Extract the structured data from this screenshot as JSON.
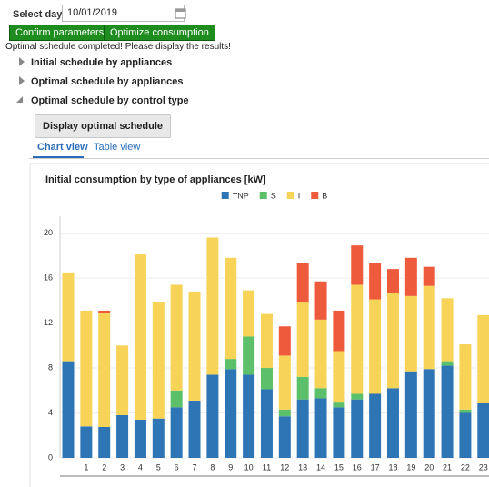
{
  "date_picker": {
    "label": "Select day:",
    "value": "10/01/2019"
  },
  "buttons": [
    "Confirm parameters",
    "Optimize consumption"
  ],
  "status": "Optimal schedule completed! Please display the results!",
  "sections": [
    "Initial schedule by appliances",
    "Optimal schedule by appliances",
    "Optimal schedule by control type"
  ],
  "display_button": "Display optimal schedule",
  "tabs": [
    "Chart view",
    "Table view"
  ],
  "chart_data": {
    "type": "bar",
    "stacked": true,
    "grid": true,
    "legend": "top",
    "title": "Initial consumption by type of appliances [kW]",
    "categories": [
      null,
      "1",
      "2",
      "3",
      "4",
      "5",
      "6",
      "7",
      "8",
      "9",
      "10",
      "11",
      "12",
      "13",
      "14",
      "15",
      "16",
      "17",
      "18",
      "19",
      "20",
      "21",
      "22",
      "23"
    ],
    "series": [
      {
        "name": "TNP",
        "color": "#2e75b6",
        "values": [
          8.6,
          2.8,
          2.75,
          3.8,
          3.4,
          3.5,
          4.5,
          5.1,
          7.4,
          7.9,
          7.4,
          6.1,
          3.7,
          5.2,
          5.3,
          4.5,
          5.2,
          5.7,
          6.2,
          7.7,
          7.9,
          8.2,
          4.0,
          4.9
        ]
      },
      {
        "name": "S",
        "color": "#5cbf6a",
        "values": [
          0,
          0,
          0,
          0,
          0,
          0,
          1.5,
          0,
          0,
          0.9,
          3.4,
          1.9,
          0.6,
          2.0,
          0.9,
          0.5,
          0.5,
          0,
          0,
          0,
          0,
          0.4,
          0.3,
          0
        ]
      },
      {
        "name": "I",
        "color": "#f7d358",
        "values": [
          7.9,
          10.3,
          10.15,
          6.2,
          14.7,
          10.4,
          9.4,
          9.7,
          12.2,
          9.0,
          4.1,
          4.8,
          4.8,
          6.7,
          6.1,
          4.5,
          9.7,
          8.4,
          8.5,
          6.7,
          7.4,
          5.6,
          5.8,
          7.8
        ]
      },
      {
        "name": "B",
        "color": "#ee5a3c",
        "values": [
          0,
          0,
          0.2,
          0,
          0,
          0,
          0,
          0,
          0,
          0,
          0,
          0,
          2.6,
          3.4,
          3.4,
          3.6,
          3.5,
          3.2,
          2.1,
          3.4,
          1.7,
          0,
          0,
          0
        ]
      }
    ],
    "ylim": [
      0,
      21.5
    ],
    "yticks": [
      0,
      4,
      8,
      12,
      16,
      20
    ]
  }
}
